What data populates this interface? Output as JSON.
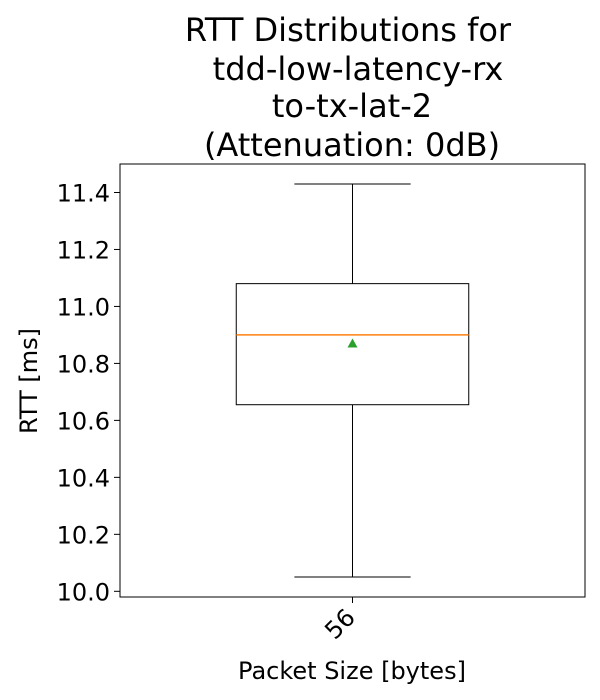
{
  "chart_data": {
    "type": "box",
    "title_lines": [
      "RTT Distributions for",
      "tdd-low-latency-rx",
      "to-tx-lat-2",
      "(Attenuation: 0dB)"
    ],
    "xlabel": "Packet Size [bytes]",
    "ylabel": "RTT [ms]",
    "categories": [
      "56"
    ],
    "ylim": [
      9.98,
      11.5
    ],
    "yticks": [
      10.0,
      10.2,
      10.4,
      10.6,
      10.8,
      11.0,
      11.2,
      11.4
    ],
    "ytick_labels": [
      "10.0",
      "10.2",
      "10.4",
      "10.6",
      "10.8",
      "11.0",
      "11.2",
      "11.4"
    ],
    "boxes": [
      {
        "category": "56",
        "whisker_low": 10.05,
        "q1": 10.655,
        "median": 10.9,
        "q3": 11.08,
        "whisker_high": 11.43,
        "mean": 10.87
      }
    ],
    "colors": {
      "box": "#000000",
      "median": "#ff7f0e",
      "mean": "#2ca02c"
    },
    "grid": false,
    "legend": "none"
  }
}
